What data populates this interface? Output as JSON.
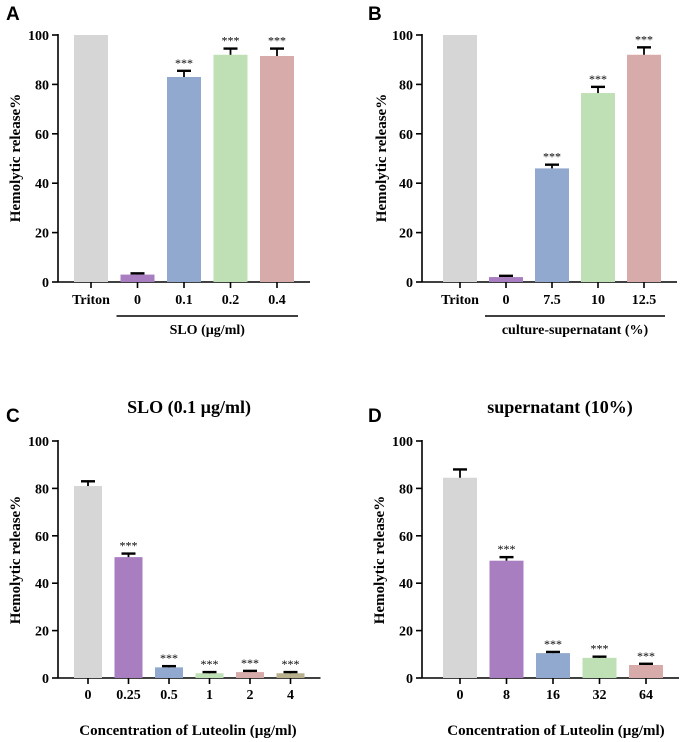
{
  "chart_data": [
    {
      "panel": "A",
      "type": "bar",
      "title": "",
      "ylabel": "Hemolytic release%",
      "xlabel": "",
      "ylim": [
        0,
        100
      ],
      "yticks": [
        "0",
        "20",
        "40",
        "60",
        "80",
        "100"
      ],
      "categories": [
        "Triton",
        "0",
        "0.1",
        "0.2",
        "0.4"
      ],
      "values": [
        100,
        3,
        83,
        92,
        91.5
      ],
      "errors": [
        0,
        0.5,
        2.5,
        2.5,
        3
      ],
      "colors": [
        "#d6d6d6",
        "#a97ec0",
        "#92a9cf",
        "#bfe0b4",
        "#d8abab"
      ],
      "significance": [
        "",
        "",
        "***",
        "***",
        "***"
      ],
      "group_label": "SLO (µg/ml)",
      "group_span": [
        1,
        4
      ]
    },
    {
      "panel": "B",
      "type": "bar",
      "title": "",
      "ylabel": "Hemolytic release%",
      "xlabel": "",
      "ylim": [
        0,
        100
      ],
      "yticks": [
        "0",
        "20",
        "40",
        "60",
        "80",
        "100"
      ],
      "categories": [
        "Triton",
        "0",
        "7.5",
        "10",
        "12.5"
      ],
      "values": [
        100,
        2,
        46,
        76.5,
        92
      ],
      "errors": [
        0,
        0.5,
        1.5,
        2.5,
        3
      ],
      "colors": [
        "#d6d6d6",
        "#a97ec0",
        "#92a9cf",
        "#bfe0b4",
        "#d8abab"
      ],
      "significance": [
        "",
        "",
        "***",
        "***",
        "***"
      ],
      "group_label": "culture-supernatant (%)",
      "group_span": [
        1,
        4
      ]
    },
    {
      "panel": "C",
      "type": "bar",
      "title": "SLO (0.1 µg/ml)",
      "ylabel": "Hemolytic release%",
      "xlabel": "Concentration of Luteolin (µg/ml)",
      "ylim": [
        0,
        100
      ],
      "yticks": [
        "0",
        "20",
        "40",
        "60",
        "80",
        "100"
      ],
      "categories": [
        "0",
        "0.25",
        "0.5",
        "1",
        "2",
        "4"
      ],
      "values": [
        81,
        51,
        4.5,
        2,
        2.5,
        2
      ],
      "errors": [
        2,
        1.5,
        0.5,
        0.5,
        0.5,
        0.5
      ],
      "colors": [
        "#d6d6d6",
        "#a97ec0",
        "#92a9cf",
        "#bfe0b4",
        "#d8abab",
        "#b8b08c"
      ],
      "significance": [
        "",
        "***",
        "***",
        "***",
        "***",
        "***"
      ]
    },
    {
      "panel": "D",
      "type": "bar",
      "title": "supernatant (10%)",
      "ylabel": "Hemolytic release%",
      "xlabel": "Concentration of Luteolin (µg/ml)",
      "ylim": [
        0,
        100
      ],
      "yticks": [
        "0",
        "20",
        "40",
        "60",
        "80",
        "100"
      ],
      "categories": [
        "0",
        "8",
        "16",
        "32",
        "64"
      ],
      "values": [
        84.5,
        49.5,
        10.5,
        8.5,
        5.5
      ],
      "errors": [
        3.5,
        1.5,
        0.5,
        0.5,
        0.5
      ],
      "colors": [
        "#d6d6d6",
        "#a97ec0",
        "#92a9cf",
        "#bfe0b4",
        "#d8abab"
      ],
      "significance": [
        "",
        "***",
        "***",
        "***",
        "***"
      ]
    }
  ]
}
